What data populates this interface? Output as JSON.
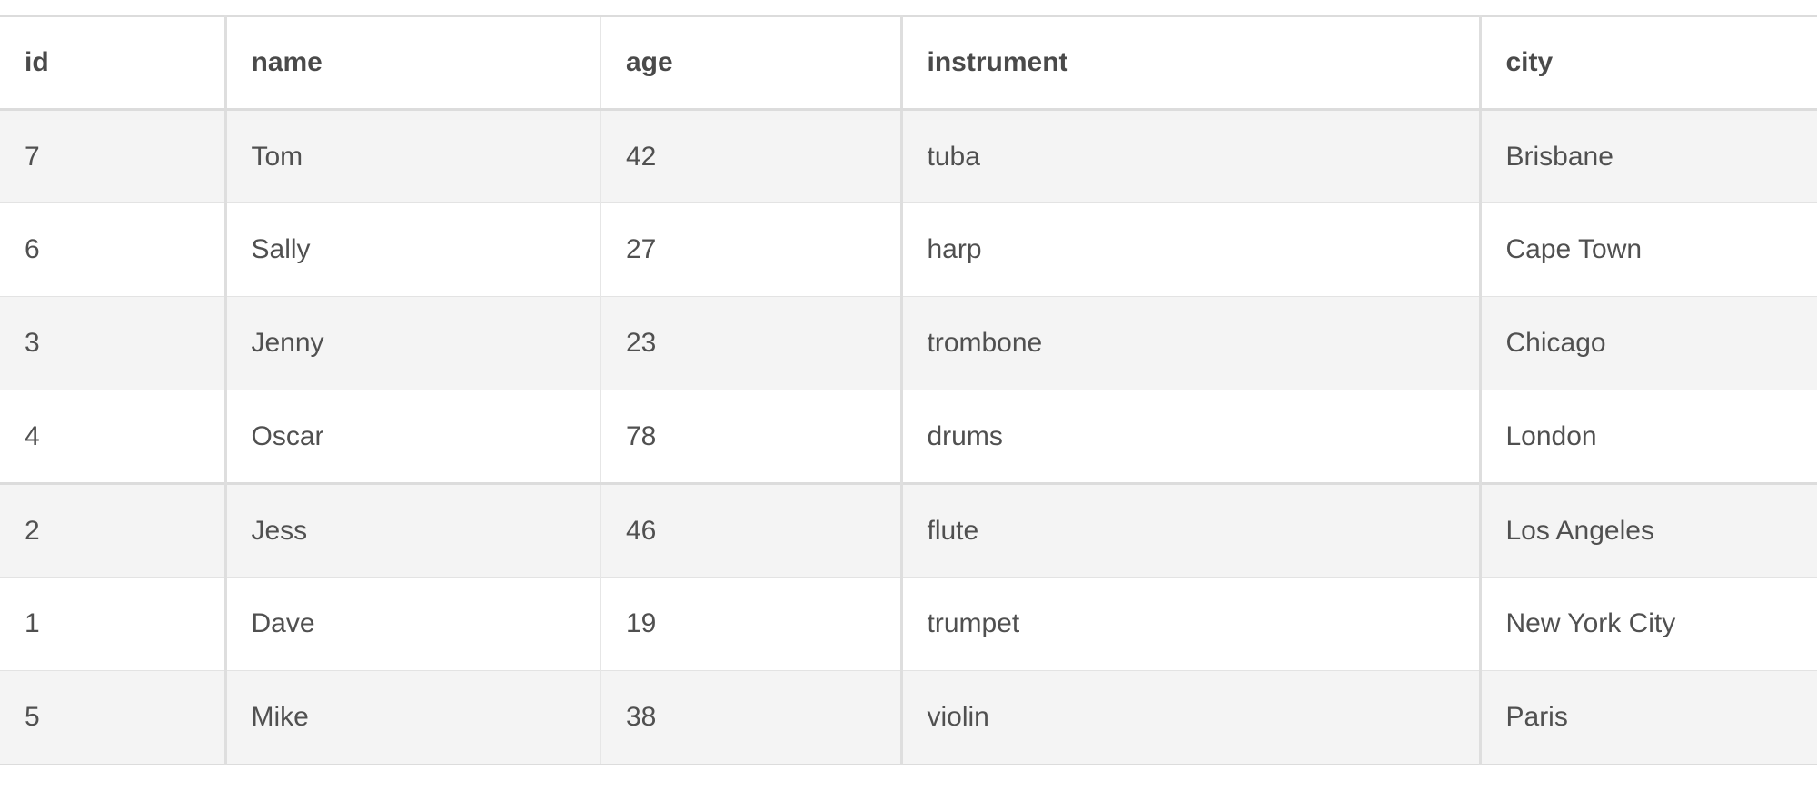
{
  "table": {
    "columns": [
      "id",
      "name",
      "age",
      "instrument",
      "city"
    ],
    "rows": [
      [
        "7",
        "Tom",
        "42",
        "tuba",
        "Brisbane"
      ],
      [
        "6",
        "Sally",
        "27",
        "harp",
        "Cape Town"
      ],
      [
        "3",
        "Jenny",
        "23",
        "trombone",
        "Chicago"
      ],
      [
        "4",
        "Oscar",
        "78",
        "drums",
        "London"
      ],
      [
        "2",
        "Jess",
        "46",
        "flute",
        "Los Angeles"
      ],
      [
        "1",
        "Dave",
        "19",
        "trumpet",
        "New York City"
      ],
      [
        "5",
        "Mike",
        "38",
        "violin",
        "Paris"
      ]
    ]
  },
  "colors": {
    "stripe": "#f4f4f4",
    "text": "#505050",
    "border": "#dcdcdc"
  }
}
